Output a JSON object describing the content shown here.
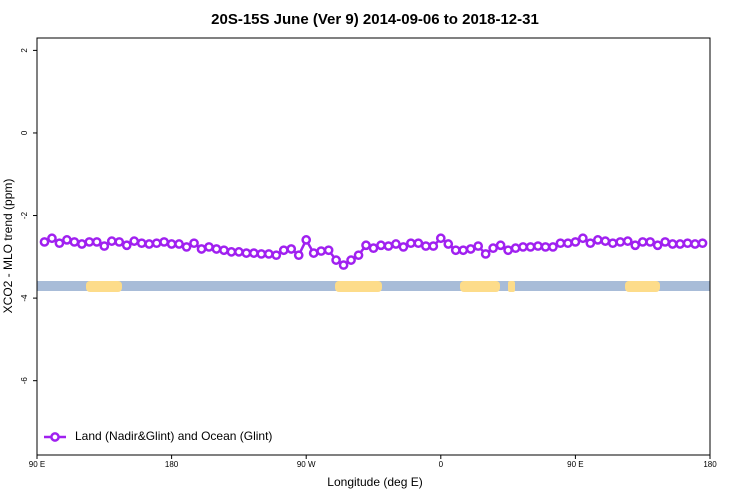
{
  "chart_data": {
    "type": "line",
    "title": "20S-15S June (Ver 9)   2014-09-06 to 2018-12-31",
    "xlabel": "Longitude (deg E)",
    "ylabel": "XCO2 - MLO trend (ppm)",
    "x": [
      95,
      100,
      105,
      110,
      115,
      120,
      125,
      130,
      135,
      140,
      145,
      150,
      155,
      160,
      165,
      170,
      175,
      180,
      185,
      190,
      195,
      200,
      205,
      210,
      215,
      220,
      225,
      230,
      235,
      240,
      245,
      250,
      255,
      260,
      265,
      270,
      275,
      280,
      285,
      290,
      295,
      300,
      305,
      310,
      315,
      320,
      325,
      330,
      335,
      340,
      345,
      350,
      355,
      360,
      365,
      370,
      375,
      380,
      385,
      390,
      395,
      400,
      405,
      410,
      415,
      420,
      425,
      430,
      435,
      440,
      445,
      450,
      455,
      460,
      465,
      470,
      475,
      480,
      485,
      490,
      495,
      500,
      505,
      510,
      515,
      520,
      525,
      530,
      535
    ],
    "series": [
      {
        "name": "Land (Nadir&Glint) and Ocean (Glint)",
        "color": "#a020f0",
        "values": [
          -2.64,
          -2.55,
          -2.67,
          -2.59,
          -2.64,
          -2.69,
          -2.64,
          -2.64,
          -2.74,
          -2.62,
          -2.64,
          -2.72,
          -2.62,
          -2.67,
          -2.69,
          -2.67,
          -2.64,
          -2.69,
          -2.69,
          -2.76,
          -2.67,
          -2.81,
          -2.76,
          -2.81,
          -2.84,
          -2.88,
          -2.88,
          -2.91,
          -2.91,
          -2.93,
          -2.93,
          -2.96,
          -2.84,
          -2.81,
          -2.96,
          -2.59,
          -2.91,
          -2.86,
          -2.84,
          -3.08,
          -3.2,
          -3.08,
          -2.96,
          -2.72,
          -2.79,
          -2.72,
          -2.74,
          -2.69,
          -2.76,
          -2.67,
          -2.67,
          -2.74,
          -2.74,
          -2.55,
          -2.69,
          -2.84,
          -2.84,
          -2.81,
          -2.74,
          -2.93,
          -2.79,
          -2.72,
          -2.84,
          -2.79,
          -2.76,
          -2.76,
          -2.74,
          -2.76,
          -2.76,
          -2.67,
          -2.67,
          -2.64,
          -2.55,
          -2.67,
          -2.59,
          -2.62,
          -2.67,
          -2.64,
          -2.62,
          -2.72,
          -2.64,
          -2.64,
          -2.72,
          -2.64,
          -2.69,
          -2.69,
          -2.67,
          -2.69,
          -2.67
        ]
      }
    ],
    "xlim": [
      90,
      540
    ],
    "xticks": [
      {
        "value": 90,
        "label": "90 E"
      },
      {
        "value": 180,
        "label": "180"
      },
      {
        "value": 270,
        "label": "90 W"
      },
      {
        "value": 360,
        "label": "0"
      },
      {
        "value": 450,
        "label": "90 E"
      },
      {
        "value": 540,
        "label": "180"
      }
    ],
    "ylim": [
      -7.8,
      2.3
    ],
    "yticks": [
      2,
      0,
      -2,
      -4,
      -6
    ],
    "legend": "bottom-left"
  }
}
